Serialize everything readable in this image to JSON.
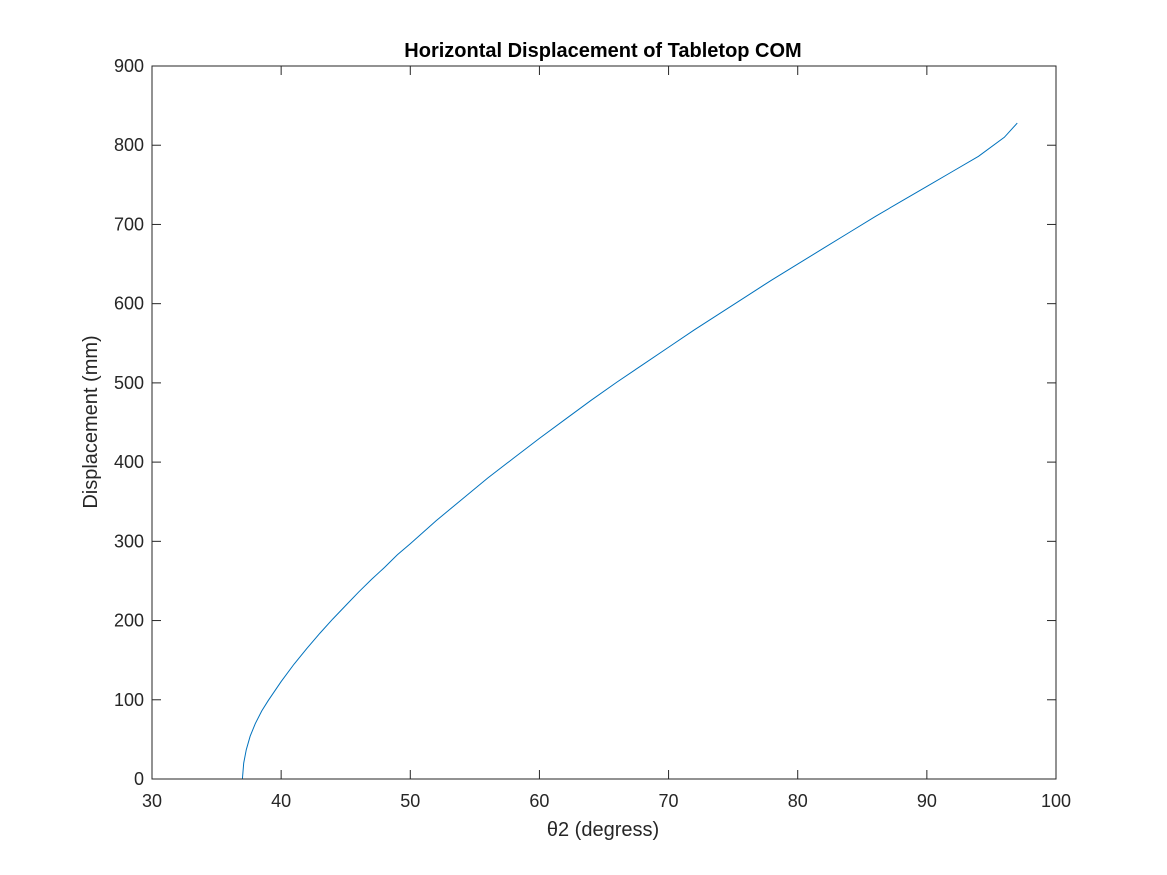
{
  "chart_data": {
    "type": "line",
    "title": "Horizontal Displacement of Tabletop COM",
    "xlabel": "θ2 (degress)",
    "ylabel": "Displacement (mm)",
    "xlim": [
      30,
      100
    ],
    "ylim": [
      0,
      900
    ],
    "xticks": [
      30,
      40,
      50,
      60,
      70,
      80,
      90,
      100
    ],
    "yticks": [
      0,
      100,
      200,
      300,
      400,
      500,
      600,
      700,
      800,
      900
    ],
    "grid": false,
    "series": [
      {
        "color": "#0072BD",
        "x": [
          37,
          37.1,
          37.3,
          37.6,
          38,
          38.5,
          39,
          40,
          41,
          42,
          43,
          44,
          45,
          46,
          47,
          48,
          49,
          50,
          52,
          54,
          56,
          58,
          60,
          62,
          64,
          66,
          68,
          70,
          72,
          74,
          76,
          78,
          80,
          82,
          84,
          86,
          88,
          90,
          92,
          94,
          96,
          97
        ],
        "y": [
          0,
          20,
          37,
          54,
          70,
          86,
          99,
          123,
          145,
          165,
          184,
          202,
          219,
          236,
          252,
          267,
          283,
          297,
          326,
          353,
          380,
          405,
          430,
          454,
          478,
          501,
          523,
          545,
          567,
          588,
          609,
          630,
          650,
          670,
          690,
          710,
          729,
          748,
          767,
          786,
          810,
          828
        ]
      }
    ]
  }
}
